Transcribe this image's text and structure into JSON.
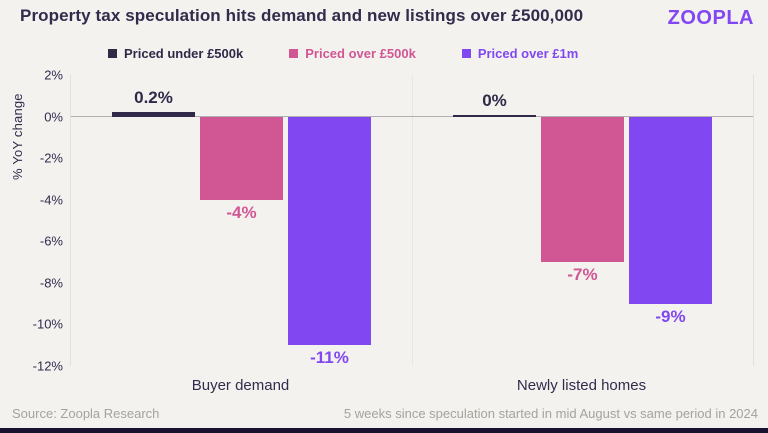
{
  "header": {
    "title": "Property tax speculation hits demand and new listings over £500,000",
    "logo_text": "ZOOPLA"
  },
  "legend": {
    "items": [
      {
        "label": "Priced under £500k",
        "color": "#302948"
      },
      {
        "label": "Priced over £500k",
        "color": "#d15694"
      },
      {
        "label": "Priced over £1m",
        "color": "#8148f1"
      }
    ]
  },
  "chart_data": {
    "type": "bar",
    "categories": [
      "Buyer demand",
      "Newly listed homes"
    ],
    "series": [
      {
        "name": "Priced under £500k",
        "color": "#302948",
        "values": [
          0.2,
          0
        ],
        "labels": [
          "0.2%",
          "0%"
        ]
      },
      {
        "name": "Priced over £500k",
        "color": "#d15694",
        "values": [
          -4,
          -7
        ],
        "labels": [
          "-4%",
          "-7%"
        ]
      },
      {
        "name": "Priced over £1m",
        "color": "#8148f1",
        "values": [
          -11,
          -9
        ],
        "labels": [
          "-11%",
          "-9%"
        ]
      }
    ],
    "title": "Property tax speculation hits demand and new listings over £500,000",
    "xlabel": "",
    "ylabel": "% YoY change",
    "ylim": [
      -12,
      2
    ],
    "yticks": [
      2,
      0,
      -2,
      -4,
      -6,
      -8,
      -10,
      -12
    ],
    "ytick_labels": [
      "2%",
      "0%",
      "-2%",
      "-4%",
      "-6%",
      "-8%",
      "-10%",
      "-12%"
    ],
    "grid": "off",
    "legend_position": "top"
  },
  "footer": {
    "source": "Source: Zoopla Research",
    "note": "5 weeks since speculation started in mid August vs same period in 2024"
  },
  "colors": {
    "background": "#f4f2ef",
    "text_dark": "#322b4c",
    "pink": "#d15694",
    "purple": "#8148f1",
    "logo_purple": "#8246f3",
    "gray_text": "#a6a29c",
    "axis_line": "#e3e0db",
    "zero_line": "#b1aeb4",
    "bottom_strip": "#18122f"
  }
}
